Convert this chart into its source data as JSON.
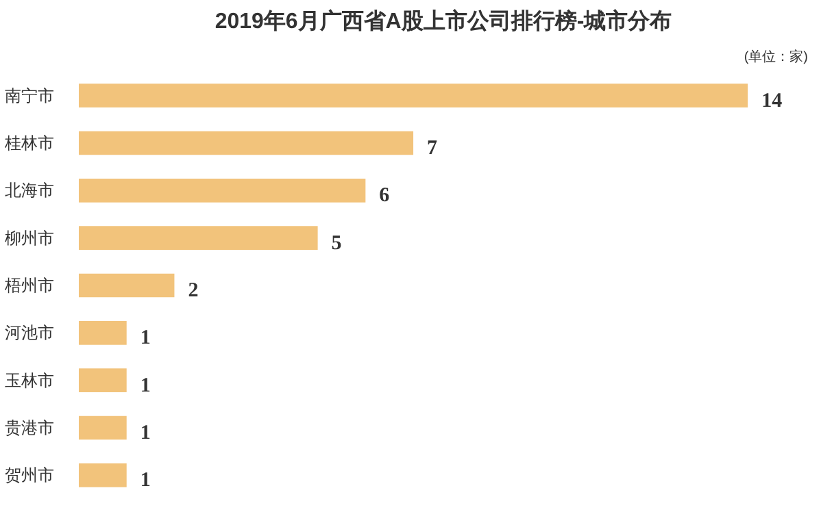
{
  "chart_data": {
    "type": "bar",
    "orientation": "horizontal",
    "title": "2019年6月广西省A股上市公司排行榜-城市分布",
    "subtitle": "(单位：家)",
    "categories": [
      "南宁市",
      "桂林市",
      "北海市",
      "柳州市",
      "梧州市",
      "河池市",
      "玉林市",
      "贵港市",
      "贺州市"
    ],
    "values": [
      14,
      7,
      6,
      5,
      2,
      1,
      1,
      1,
      1
    ],
    "color": "#f2c37b",
    "data_labels": true,
    "grid": false
  }
}
